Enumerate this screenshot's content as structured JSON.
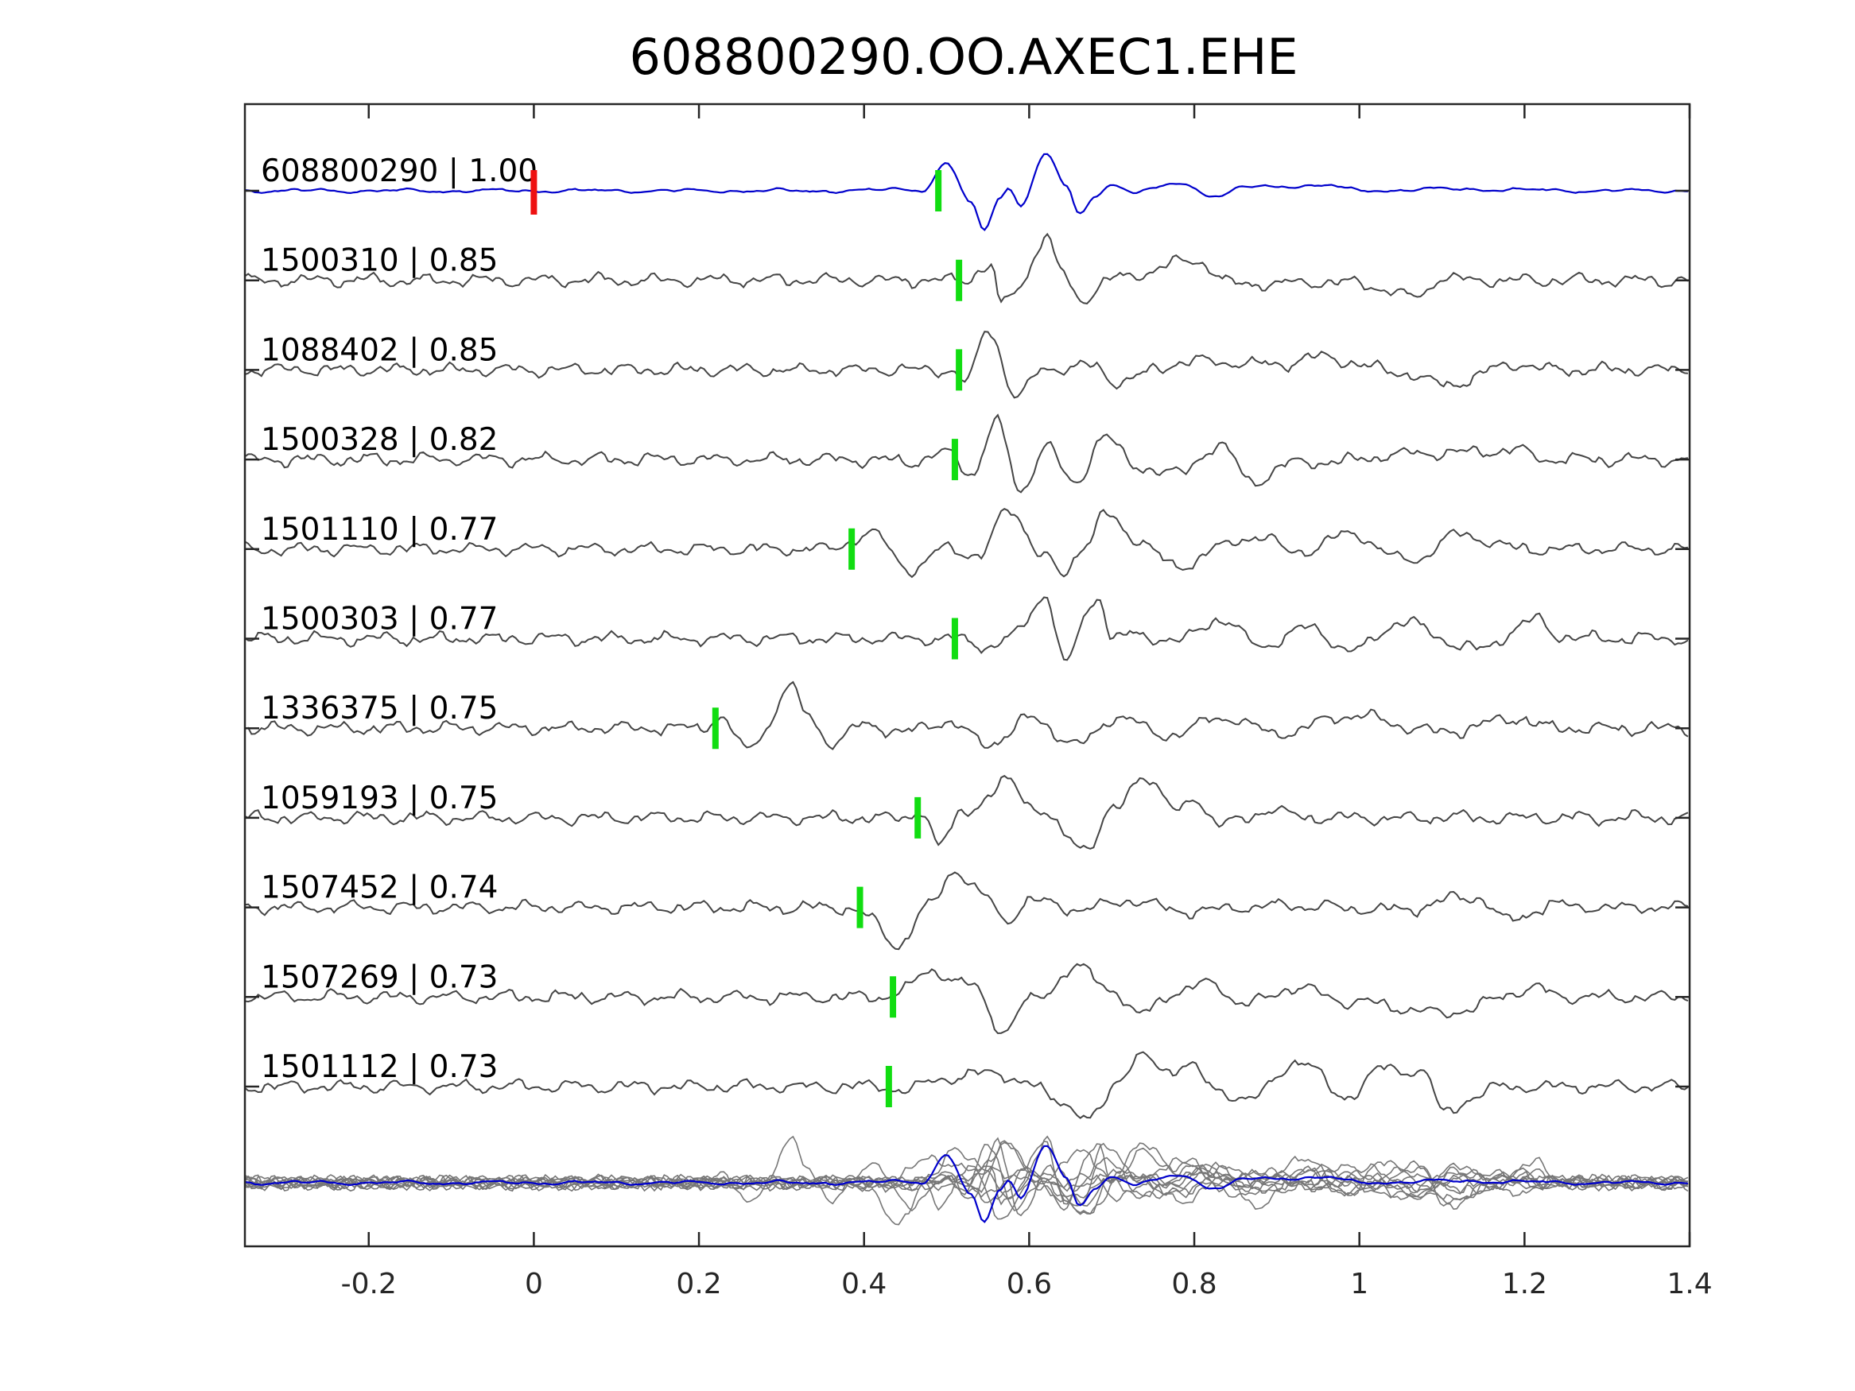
{
  "chart_data": {
    "type": "line",
    "title": "608800290.OO.AXEC1.EHE",
    "xlabel": "",
    "ylabel": "",
    "xlim": [
      -0.35,
      1.4
    ],
    "xticks": [
      -0.2,
      0,
      0.2,
      0.4,
      0.6,
      0.8,
      1,
      1.2,
      1.4
    ],
    "xtick_labels": [
      "-0.2",
      "0",
      "0.2",
      "0.4",
      "0.6",
      "0.8",
      "1",
      "1.2",
      "1.4"
    ],
    "grid": false,
    "legend": "none",
    "origin_marker": {
      "x": 0,
      "color": "#ee1111"
    },
    "pick_marker_color": "#11dd11",
    "master": {
      "label": "608800290 | 1.00",
      "color": "#0000cc",
      "pick": 0.49,
      "waveform": [
        [
          0.4,
          0.0
        ],
        [
          0.44,
          0.05
        ],
        [
          0.47,
          0.02
        ],
        [
          0.5,
          0.75
        ],
        [
          0.53,
          -0.35
        ],
        [
          0.545,
          -1.15
        ],
        [
          0.565,
          -0.15
        ],
        [
          0.575,
          0.1
        ],
        [
          0.59,
          -0.4
        ],
        [
          0.62,
          1.05
        ],
        [
          0.645,
          0.1
        ],
        [
          0.66,
          -0.65
        ],
        [
          0.68,
          -0.15
        ],
        [
          0.7,
          0.2
        ],
        [
          0.73,
          -0.05
        ],
        [
          0.78,
          0.2
        ],
        [
          0.83,
          -0.15
        ],
        [
          0.86,
          0.1
        ],
        [
          0.96,
          0.15
        ],
        [
          1.0,
          0.0
        ],
        [
          1.1,
          0.05
        ],
        [
          1.3,
          0.0
        ]
      ]
    },
    "series": [
      {
        "label": "1500310 | 0.85",
        "pick": 0.515,
        "waveform": [
          [
            0.52,
            0.0
          ],
          [
            0.555,
            0.45
          ],
          [
            0.565,
            -0.75
          ],
          [
            0.585,
            -0.25
          ],
          [
            0.62,
            1.2
          ],
          [
            0.64,
            0.2
          ],
          [
            0.66,
            -0.55
          ],
          [
            0.7,
            0.05
          ],
          [
            0.8,
            0.55
          ],
          [
            0.85,
            -0.1
          ],
          [
            0.99,
            -0.05
          ],
          [
            1.07,
            -0.45
          ],
          [
            1.1,
            0.1
          ]
        ]
      },
      {
        "label": "1088402 | 0.85",
        "pick": 0.515,
        "waveform": [
          [
            0.5,
            0.0
          ],
          [
            0.525,
            -0.3
          ],
          [
            0.55,
            1.15
          ],
          [
            0.585,
            -0.75
          ],
          [
            0.62,
            0.05
          ],
          [
            0.68,
            0.1
          ],
          [
            0.7,
            -0.3
          ],
          [
            0.8,
            0.25
          ],
          [
            0.9,
            0.15
          ],
          [
            0.95,
            0.35
          ],
          [
            1.05,
            -0.05
          ],
          [
            1.1,
            -0.4
          ],
          [
            1.2,
            0.2
          ]
        ]
      },
      {
        "label": "1500328 | 0.82",
        "pick": 0.51,
        "waveform": [
          [
            0.45,
            -0.1
          ],
          [
            0.5,
            0.2
          ],
          [
            0.53,
            -0.4
          ],
          [
            0.56,
            1.05
          ],
          [
            0.59,
            -0.9
          ],
          [
            0.62,
            0.4
          ],
          [
            0.655,
            -0.7
          ],
          [
            0.69,
            0.65
          ],
          [
            0.73,
            -0.2
          ],
          [
            0.78,
            -0.4
          ],
          [
            0.83,
            0.4
          ],
          [
            0.87,
            -0.6
          ],
          [
            0.92,
            -0.1
          ],
          [
            0.97,
            -0.05
          ],
          [
            1.05,
            0.15
          ],
          [
            1.2,
            0.25
          ]
        ]
      },
      {
        "label": "1501110 | 0.77",
        "pick": 0.385,
        "waveform": [
          [
            0.35,
            0.0
          ],
          [
            0.41,
            0.4
          ],
          [
            0.46,
            -0.6
          ],
          [
            0.5,
            0.05
          ],
          [
            0.54,
            -0.2
          ],
          [
            0.575,
            1.15
          ],
          [
            0.62,
            -0.25
          ],
          [
            0.64,
            -0.7
          ],
          [
            0.67,
            0.2
          ],
          [
            0.69,
            0.95
          ],
          [
            0.73,
            0.3
          ],
          [
            0.78,
            -0.55
          ],
          [
            0.83,
            0.05
          ],
          [
            0.88,
            0.4
          ],
          [
            0.92,
            -0.1
          ],
          [
            0.99,
            0.4
          ],
          [
            1.06,
            -0.35
          ],
          [
            1.12,
            0.4
          ],
          [
            1.2,
            0.0
          ]
        ]
      },
      {
        "label": "1500303 | 0.77",
        "pick": 0.51,
        "waveform": [
          [
            0.5,
            0.0
          ],
          [
            0.555,
            -0.2
          ],
          [
            0.58,
            0.05
          ],
          [
            0.62,
            1.2
          ],
          [
            0.645,
            -0.75
          ],
          [
            0.67,
            0.7
          ],
          [
            0.685,
            1.25
          ],
          [
            0.7,
            0.0
          ],
          [
            0.72,
            0.1
          ],
          [
            0.78,
            -0.05
          ],
          [
            0.83,
            0.55
          ],
          [
            0.88,
            -0.2
          ],
          [
            0.94,
            0.3
          ],
          [
            0.99,
            -0.35
          ],
          [
            1.05,
            0.45
          ],
          [
            1.14,
            -0.3
          ],
          [
            1.22,
            0.55
          ]
        ]
      },
      {
        "label": "1336375 | 0.75",
        "pick": 0.22,
        "waveform": [
          [
            0.2,
            0.0
          ],
          [
            0.225,
            0.3
          ],
          [
            0.26,
            -0.65
          ],
          [
            0.28,
            0.0
          ],
          [
            0.31,
            1.2
          ],
          [
            0.33,
            0.4
          ],
          [
            0.36,
            -0.4
          ],
          [
            0.4,
            0.1
          ],
          [
            0.45,
            -0.1
          ],
          [
            0.5,
            0.2
          ],
          [
            0.55,
            -0.45
          ],
          [
            0.6,
            0.25
          ],
          [
            0.66,
            -0.45
          ],
          [
            0.71,
            0.35
          ],
          [
            0.76,
            -0.2
          ],
          [
            0.84,
            0.3
          ],
          [
            0.9,
            -0.15
          ],
          [
            0.99,
            0.35
          ],
          [
            1.1,
            -0.1
          ],
          [
            1.2,
            0.3
          ]
        ]
      },
      {
        "label": "1059193 | 0.75",
        "pick": 0.465,
        "waveform": [
          [
            0.45,
            0.0
          ],
          [
            0.47,
            0.2
          ],
          [
            0.49,
            -0.8
          ],
          [
            0.52,
            0.2
          ],
          [
            0.55,
            0.5
          ],
          [
            0.57,
            1.05
          ],
          [
            0.62,
            0.1
          ],
          [
            0.645,
            -0.55
          ],
          [
            0.67,
            -0.8
          ],
          [
            0.7,
            0.15
          ],
          [
            0.74,
            1.2
          ],
          [
            0.78,
            0.15
          ],
          [
            0.8,
            0.6
          ],
          [
            0.83,
            -0.2
          ],
          [
            0.9,
            0.25
          ]
        ]
      },
      {
        "label": "1507452 | 0.74",
        "pick": 0.395,
        "waveform": [
          [
            0.38,
            0.0
          ],
          [
            0.4,
            -0.2
          ],
          [
            0.44,
            -1.05
          ],
          [
            0.48,
            0.05
          ],
          [
            0.51,
            1.05
          ],
          [
            0.55,
            0.25
          ],
          [
            0.57,
            -0.4
          ],
          [
            0.6,
            0.2
          ],
          [
            0.66,
            -0.05
          ],
          [
            0.73,
            0.2
          ],
          [
            0.78,
            -0.1
          ],
          [
            0.9,
            0.05
          ],
          [
            1.05,
            -0.05
          ],
          [
            1.14,
            0.3
          ],
          [
            1.18,
            -0.35
          ],
          [
            1.24,
            0.1
          ]
        ]
      },
      {
        "label": "1507269 | 0.73",
        "pick": 0.435,
        "waveform": [
          [
            0.42,
            0.0
          ],
          [
            0.45,
            0.2
          ],
          [
            0.48,
            0.75
          ],
          [
            0.53,
            0.3
          ],
          [
            0.57,
            -0.95
          ],
          [
            0.6,
            -0.1
          ],
          [
            0.66,
            0.8
          ],
          [
            0.7,
            0.25
          ],
          [
            0.73,
            -0.5
          ],
          [
            0.78,
            0.15
          ],
          [
            0.82,
            0.4
          ],
          [
            0.86,
            -0.2
          ],
          [
            0.92,
            0.25
          ],
          [
            1.0,
            -0.15
          ],
          [
            1.1,
            -0.45
          ],
          [
            1.22,
            0.25
          ]
        ]
      },
      {
        "label": "1501112 | 0.73",
        "pick": 0.43,
        "waveform": [
          [
            0.42,
            0.0
          ],
          [
            0.45,
            -0.1
          ],
          [
            0.5,
            0.25
          ],
          [
            0.56,
            0.4
          ],
          [
            0.6,
            0.05
          ],
          [
            0.63,
            -0.3
          ],
          [
            0.675,
            -0.95
          ],
          [
            0.71,
            0.25
          ],
          [
            0.73,
            0.85
          ],
          [
            0.77,
            0.4
          ],
          [
            0.79,
            0.7
          ],
          [
            0.83,
            -0.2
          ],
          [
            0.87,
            -0.3
          ],
          [
            0.93,
            0.75
          ],
          [
            0.98,
            -0.3
          ],
          [
            1.03,
            0.5
          ],
          [
            1.08,
            0.4
          ],
          [
            1.1,
            -0.75
          ],
          [
            1.14,
            -0.3
          ]
        ]
      }
    ],
    "overlay": "stack of all traces",
    "colors": {
      "master": "#0000cc",
      "traces": "#454545",
      "overlay": "#777777",
      "origin": "#ee1111",
      "pick": "#11dd11"
    }
  }
}
